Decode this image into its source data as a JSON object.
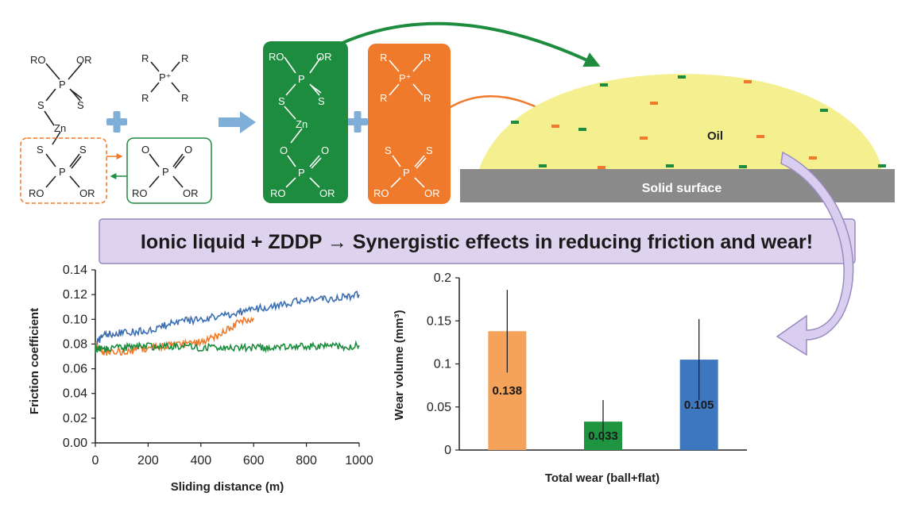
{
  "banner": {
    "text": "Ionic liquid + ZDDP → Synergistic effects in reducing friction and wear!"
  },
  "scheme": {
    "zddp_labels": [
      "RO",
      "OR",
      "P",
      "S",
      "S",
      "Zn",
      "S",
      "S",
      "P",
      "RO",
      "OR"
    ],
    "phosphonium_labels": [
      "R",
      "R",
      "P⁺",
      "R",
      "R"
    ],
    "phosphate_labels": [
      "O",
      "O",
      "P",
      "RO",
      "OR"
    ],
    "green_box_labels": [
      "RO",
      "OR",
      "P",
      "S",
      "S",
      "Zn",
      "O",
      "O",
      "P",
      "RO",
      "OR"
    ],
    "orange_box_labels": [
      "R",
      "R",
      "P⁺",
      "R",
      "R",
      "S",
      "S",
      "P",
      "RO",
      "OR"
    ],
    "oil_label": "Oil",
    "surface_label": "Solid surface"
  },
  "colors": {
    "green": "#1e8c3f",
    "orange": "#f07a2b",
    "blue": "#3d6fb3",
    "bar_orange": "#f5a35a",
    "bar_green": "#1f9441",
    "bar_blue": "#3d78bf",
    "oil": "#f4f08f",
    "surface": "#8a8a8a",
    "banner": "#ddd3ee",
    "cross": "#7faed8"
  },
  "chart_data": [
    {
      "type": "line",
      "title": "",
      "xlabel": "Sliding distance (m)",
      "ylabel": "Friction coefficient",
      "xlim": [
        0,
        1000
      ],
      "ylim": [
        0,
        0.14
      ],
      "xticks": [
        "0",
        "200",
        "400",
        "600",
        "800",
        "1000"
      ],
      "yticks": [
        "0.00",
        "0.02",
        "0.04",
        "0.06",
        "0.08",
        "0.10",
        "0.12",
        "0.14"
      ],
      "series": [
        {
          "name": "blue",
          "color": "#3d6fb3",
          "x": [
            0,
            20,
            50,
            100,
            150,
            200,
            250,
            300,
            350,
            400,
            450,
            500,
            550,
            600,
            650,
            700,
            750,
            800,
            850,
            900,
            950,
            1000
          ],
          "y": [
            0.078,
            0.085,
            0.088,
            0.089,
            0.09,
            0.091,
            0.094,
            0.097,
            0.099,
            0.1,
            0.102,
            0.104,
            0.106,
            0.108,
            0.11,
            0.112,
            0.114,
            0.115,
            0.116,
            0.117,
            0.118,
            0.12
          ]
        },
        {
          "name": "orange",
          "color": "#f07a2b",
          "x": [
            0,
            20,
            50,
            100,
            150,
            200,
            250,
            300,
            350,
            400,
            450,
            500,
            550,
            600
          ],
          "y": [
            0.08,
            0.074,
            0.073,
            0.074,
            0.075,
            0.077,
            0.078,
            0.079,
            0.08,
            0.082,
            0.085,
            0.092,
            0.098,
            0.101
          ]
        },
        {
          "name": "green",
          "color": "#1e8c3f",
          "x": [
            0,
            20,
            50,
            100,
            150,
            200,
            250,
            300,
            350,
            400,
            450,
            500,
            550,
            600,
            650,
            700,
            750,
            800,
            850,
            900,
            950,
            1000
          ],
          "y": [
            0.075,
            0.076,
            0.076,
            0.077,
            0.078,
            0.078,
            0.078,
            0.078,
            0.078,
            0.077,
            0.077,
            0.077,
            0.077,
            0.077,
            0.077,
            0.078,
            0.078,
            0.078,
            0.078,
            0.078,
            0.078,
            0.079
          ]
        }
      ]
    },
    {
      "type": "bar",
      "title": "",
      "xlabel": "Total wear (ball+flat)",
      "ylabel": "Wear volume (mm³)",
      "ylim": [
        0,
        0.2
      ],
      "yticks": [
        "0",
        "0.05",
        "0.1",
        "0.15",
        "0.2"
      ],
      "bars": [
        {
          "value": 0.138,
          "label": "0.138",
          "err_low": 0.09,
          "err_high": 0.186,
          "color": "#f5a35a"
        },
        {
          "value": 0.033,
          "label": "0.033",
          "err_low": 0.01,
          "err_high": 0.058,
          "color": "#1f9441"
        },
        {
          "value": 0.105,
          "label": "0.105",
          "err_low": 0.058,
          "err_high": 0.152,
          "color": "#3d78bf"
        }
      ]
    }
  ]
}
